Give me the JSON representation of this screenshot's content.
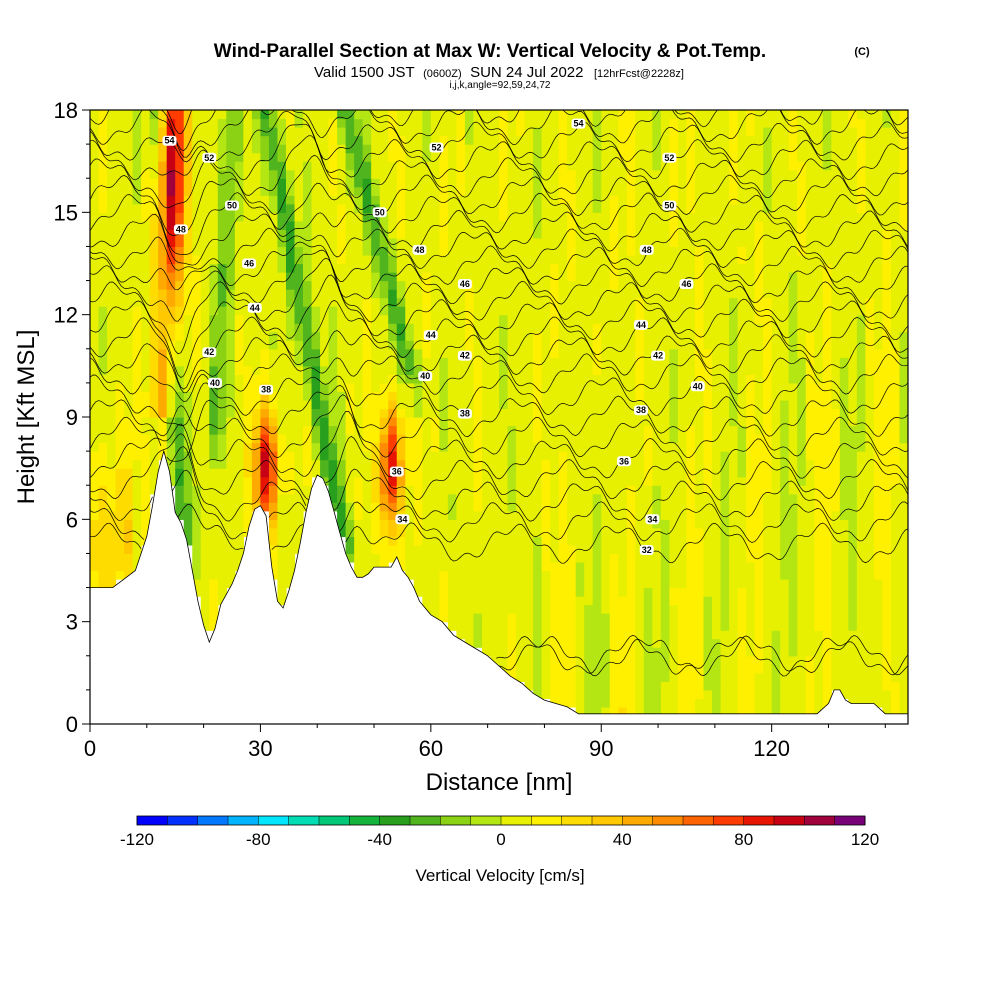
{
  "header": {
    "title": "Wind-Parallel Section at Max W: Vertical Velocity & Pot.Temp.",
    "copyright": "(C)",
    "valid_prefix": "Valid 1500 JST",
    "valid_utc": "(0600Z)",
    "valid_date": "SUN 24 Jul 2022",
    "forecast": "[12hrFcst@2228z]",
    "section_params": "i,j,k,angle=92,59,24,72"
  },
  "chart_data": {
    "type": "heatmap",
    "xlabel": "Distance [nm]",
    "ylabel": "Height [Kft MSL]",
    "xlim": [
      0,
      144
    ],
    "ylim": [
      0,
      18
    ],
    "x_ticks": [
      "0",
      "30",
      "60",
      "90",
      "120"
    ],
    "x_tick_values": [
      0,
      30,
      60,
      90,
      120
    ],
    "y_ticks": [
      "0",
      "3",
      "6",
      "9",
      "12",
      "15",
      "18"
    ],
    "y_tick_values": [
      0,
      3,
      6,
      9,
      12,
      15,
      18
    ],
    "field": "Vertical Velocity [cm/s]",
    "colorbar": {
      "label": "Vertical Velocity [cm/s]",
      "min": -120,
      "max": 120,
      "step": 10,
      "tick_labels": [
        "-120",
        "-80",
        "-40",
        "0",
        "40",
        "80",
        "120"
      ],
      "tick_values": [
        -120,
        -80,
        -40,
        0,
        40,
        80,
        120
      ],
      "colors": [
        "#0000ff",
        "#0030ff",
        "#0078ff",
        "#00b4ff",
        "#00e6ff",
        "#00dcb4",
        "#00c878",
        "#14b43c",
        "#28a01e",
        "#50b41e",
        "#8cd214",
        "#b4e614",
        "#e6f000",
        "#fff000",
        "#ffdc00",
        "#ffc800",
        "#ffaa00",
        "#ff8c00",
        "#ff6400",
        "#ff3c00",
        "#e61400",
        "#c80014",
        "#a0003c",
        "#780078"
      ]
    },
    "terrain_profile": {
      "x": [
        0,
        4,
        8,
        10,
        11,
        12,
        13,
        14,
        15,
        16,
        17,
        18,
        19,
        20,
        21,
        22,
        23,
        24,
        25,
        26,
        27,
        28,
        29,
        30,
        31,
        32,
        33,
        34,
        35,
        36,
        37,
        38,
        39,
        40,
        41,
        42,
        43,
        44,
        45,
        46,
        47,
        48,
        49,
        50,
        51,
        52,
        53,
        54,
        55,
        56,
        57,
        58,
        60,
        62,
        64,
        66,
        68,
        70,
        72,
        74,
        76,
        78,
        80,
        82,
        84,
        86,
        88,
        90,
        100,
        110,
        120,
        128,
        130,
        131,
        132,
        133,
        134,
        136,
        138,
        140,
        142,
        144
      ],
      "h": [
        4.0,
        4.0,
        4.5,
        5.5,
        6.4,
        7.4,
        8.0,
        7.4,
        6.2,
        5.9,
        5.4,
        4.5,
        3.6,
        2.9,
        2.4,
        2.8,
        3.5,
        3.8,
        4.1,
        4.5,
        5.0,
        5.8,
        6.3,
        6.4,
        6.1,
        4.6,
        3.6,
        3.4,
        3.9,
        4.5,
        5.3,
        6.2,
        6.9,
        7.3,
        7.2,
        6.8,
        6.2,
        5.6,
        5.0,
        4.6,
        4.3,
        4.3,
        4.4,
        4.6,
        4.6,
        4.6,
        4.6,
        4.9,
        4.5,
        4.3,
        4.0,
        3.6,
        3.2,
        3.0,
        2.6,
        2.4,
        2.2,
        2.0,
        1.7,
        1.4,
        1.2,
        0.9,
        0.7,
        0.6,
        0.5,
        0.3,
        0.3,
        0.3,
        0.3,
        0.3,
        0.3,
        0.3,
        0.6,
        1.0,
        1.0,
        0.7,
        0.6,
        0.6,
        0.6,
        0.3,
        0.3,
        0.3
      ]
    },
    "updraft_maxima": [
      {
        "x": 14,
        "z": 15.5,
        "w": 70
      },
      {
        "x": 31,
        "z": 7.5,
        "w": 90
      },
      {
        "x": 53,
        "z": 7.5,
        "w": 85
      }
    ],
    "downdraft_bands": [
      {
        "x_base": 17,
        "z_base": 5.0,
        "x_top": 12,
        "z_top": 18.0,
        "w": -40
      },
      {
        "x_base": 22,
        "z_base": 8.5,
        "x_top": 25,
        "z_top": 18.0,
        "w": -25
      },
      {
        "x_base": 45,
        "z_base": 5.0,
        "x_top": 31,
        "z_top": 18.0,
        "w": -40
      },
      {
        "x_base": 57,
        "z_base": 10.0,
        "x_top": 45,
        "z_top": 18.0,
        "w": -35
      }
    ],
    "potential_temperature_contours": {
      "units": "C",
      "interval": 1,
      "labeled_levels": [
        {
          "text": "54",
          "x": 14,
          "z": 17.1
        },
        {
          "text": "52",
          "x": 21,
          "z": 16.6
        },
        {
          "text": "50",
          "x": 25,
          "z": 15.2
        },
        {
          "text": "48",
          "x": 16,
          "z": 14.5
        },
        {
          "text": "46",
          "x": 28,
          "z": 13.5
        },
        {
          "text": "44",
          "x": 29,
          "z": 12.2
        },
        {
          "text": "42",
          "x": 21,
          "z": 10.9
        },
        {
          "text": "40",
          "x": 22,
          "z": 10.0
        },
        {
          "text": "38",
          "x": 31,
          "z": 9.8
        },
        {
          "text": "36",
          "x": 54,
          "z": 7.4
        },
        {
          "text": "34",
          "x": 55,
          "z": 6.0
        },
        {
          "text": "54",
          "x": 86,
          "z": 17.6
        },
        {
          "text": "52",
          "x": 61,
          "z": 16.9
        },
        {
          "text": "52",
          "x": 102,
          "z": 16.6
        },
        {
          "text": "50",
          "x": 51,
          "z": 15.0
        },
        {
          "text": "50",
          "x": 102,
          "z": 15.2
        },
        {
          "text": "48",
          "x": 58,
          "z": 13.9
        },
        {
          "text": "48",
          "x": 98,
          "z": 13.9
        },
        {
          "text": "46",
          "x": 66,
          "z": 12.9
        },
        {
          "text": "46",
          "x": 105,
          "z": 12.9
        },
        {
          "text": "44",
          "x": 60,
          "z": 11.4
        },
        {
          "text": "44",
          "x": 97,
          "z": 11.7
        },
        {
          "text": "42",
          "x": 66,
          "z": 10.8
        },
        {
          "text": "42",
          "x": 100,
          "z": 10.8
        },
        {
          "text": "40",
          "x": 59,
          "z": 10.2
        },
        {
          "text": "40",
          "x": 107,
          "z": 9.9
        },
        {
          "text": "38",
          "x": 66,
          "z": 9.1
        },
        {
          "text": "38",
          "x": 97,
          "z": 9.2
        },
        {
          "text": "36",
          "x": 94,
          "z": 7.7
        },
        {
          "text": "34",
          "x": 99,
          "z": 6.0
        },
        {
          "text": "32",
          "x": 98,
          "z": 5.1
        }
      ]
    }
  }
}
